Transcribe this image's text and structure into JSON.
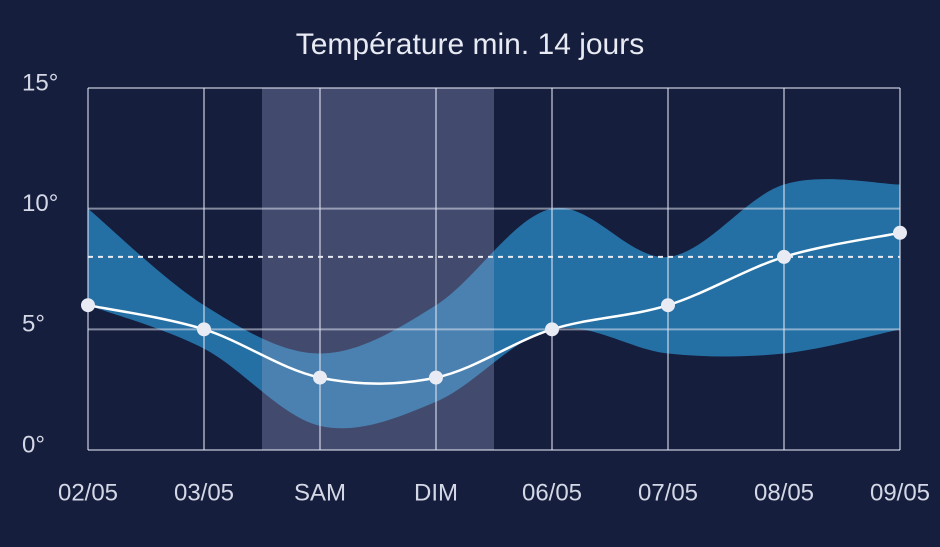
{
  "chart_data": {
    "type": "line",
    "title": "Température min. 14 jours",
    "categories": [
      "02/05",
      "03/05",
      "SAM",
      "DIM",
      "06/05",
      "07/05",
      "08/05",
      "09/05"
    ],
    "values": [
      6,
      5,
      3,
      3,
      5,
      6,
      8,
      9
    ],
    "color": "#ffffff",
    "range_high": [
      10,
      6,
      4,
      6,
      10,
      8,
      11,
      11
    ],
    "range_low": [
      6,
      4.2,
      1,
      2,
      5,
      4,
      4,
      5
    ],
    "range_color": "#2470a4",
    "reference": 8,
    "highlight": [
      2,
      3
    ],
    "ylim": [
      0,
      15
    ],
    "yticks": [
      {
        "value": 0,
        "label": "0°"
      },
      {
        "value": 5,
        "label": "5°"
      },
      {
        "value": 10,
        "label": "10°"
      },
      {
        "value": 15,
        "label": "15°"
      }
    ],
    "grid": true
  }
}
